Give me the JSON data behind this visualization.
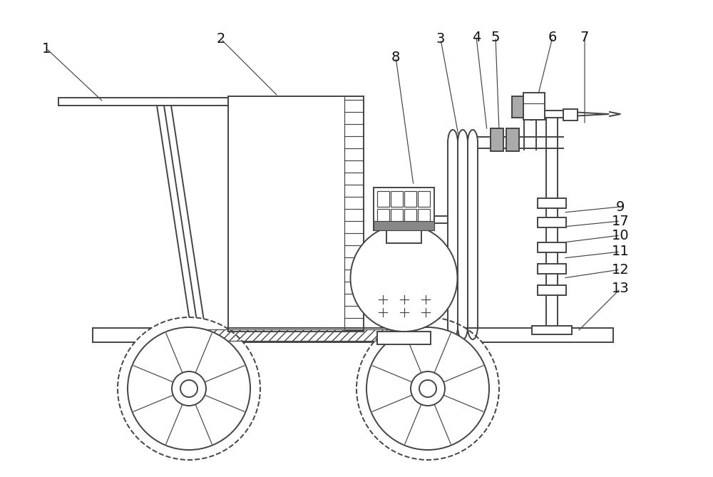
{
  "bg": "#ffffff",
  "lc": "#444444",
  "lw": 1.4,
  "tlw": 0.85,
  "figw": 10.0,
  "figh": 6.69,
  "dpi": 100,
  "annotations": [
    [
      "1",
      65,
      68,
      145,
      143
    ],
    [
      "2",
      310,
      55,
      390,
      135
    ],
    [
      "8",
      555,
      80,
      580,
      260
    ],
    [
      "3",
      618,
      55,
      643,
      190
    ],
    [
      "4",
      668,
      52,
      683,
      183
    ],
    [
      "5",
      695,
      52,
      700,
      183
    ],
    [
      "6",
      775,
      52,
      745,
      172
    ],
    [
      "7",
      820,
      52,
      820,
      175
    ],
    [
      "9",
      870,
      290,
      790,
      298
    ],
    [
      "17",
      870,
      310,
      790,
      318
    ],
    [
      "10",
      870,
      330,
      790,
      340
    ],
    [
      "11",
      870,
      353,
      790,
      362
    ],
    [
      "12",
      870,
      378,
      790,
      390
    ],
    [
      "13",
      870,
      405,
      810,
      465
    ]
  ]
}
